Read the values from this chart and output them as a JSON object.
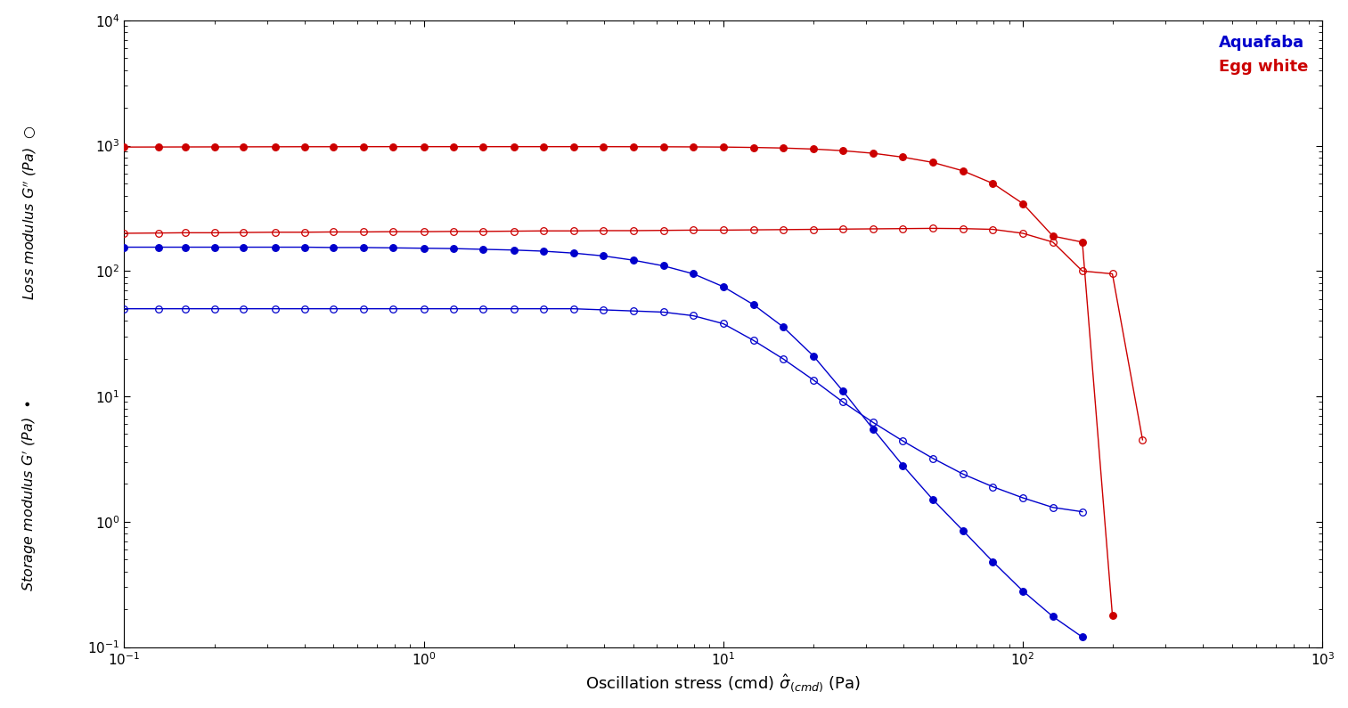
{
  "title": "",
  "xlabel": "Oscillation stress (cmd) $\\hat{\\sigma}_{(cmd)}$ (Pa)",
  "xlim": [
    0.1,
    1000
  ],
  "ylim": [
    0.1,
    10000
  ],
  "legend_labels": [
    "Aquafaba",
    "Egg white"
  ],
  "legend_colors": [
    "#0000cc",
    "#cc0000"
  ],
  "series": {
    "egg_white_Gprime": {
      "x": [
        0.1,
        0.13,
        0.16,
        0.2,
        0.25,
        0.32,
        0.4,
        0.5,
        0.63,
        0.79,
        1.0,
        1.26,
        1.58,
        2.0,
        2.51,
        3.16,
        3.98,
        5.01,
        6.31,
        7.94,
        10.0,
        12.6,
        15.8,
        20.0,
        25.1,
        31.6,
        39.8,
        50.1,
        63.1,
        79.4,
        100.0,
        126.0,
        158.0,
        199.0
      ],
      "y": [
        975,
        976,
        977,
        978,
        979,
        980,
        981,
        981,
        982,
        982,
        982,
        982,
        982,
        982,
        982,
        982,
        982,
        981,
        980,
        978,
        975,
        968,
        958,
        940,
        912,
        870,
        810,
        735,
        630,
        500,
        345,
        190,
        170,
        0.18
      ],
      "color": "#cc0000",
      "filled": true
    },
    "egg_white_Gdprime": {
      "x": [
        0.1,
        0.13,
        0.16,
        0.2,
        0.25,
        0.32,
        0.4,
        0.5,
        0.63,
        0.79,
        1.0,
        1.26,
        1.58,
        2.0,
        2.51,
        3.16,
        3.98,
        5.01,
        6.31,
        7.94,
        10.0,
        12.6,
        15.8,
        20.0,
        25.1,
        31.6,
        39.8,
        50.1,
        63.1,
        79.4,
        100.0,
        126.0,
        158.0,
        199.0,
        251.0
      ],
      "y": [
        200,
        201,
        202,
        202,
        203,
        204,
        204,
        205,
        205,
        206,
        206,
        207,
        207,
        208,
        209,
        209,
        210,
        210,
        211,
        212,
        212,
        213,
        214,
        215,
        216,
        217,
        218,
        219,
        218,
        215,
        200,
        170,
        100,
        95,
        4.5
      ],
      "color": "#cc0000",
      "filled": false
    },
    "aquafaba_Gprime": {
      "x": [
        0.1,
        0.13,
        0.16,
        0.2,
        0.25,
        0.32,
        0.4,
        0.5,
        0.63,
        0.79,
        1.0,
        1.26,
        1.58,
        2.0,
        2.51,
        3.16,
        3.98,
        5.01,
        6.31,
        7.94,
        10.0,
        12.6,
        15.8,
        20.0,
        25.1,
        31.6,
        39.8,
        50.1,
        63.1,
        79.4,
        100.0,
        126.0,
        158.0
      ],
      "y": [
        155,
        155,
        155,
        155,
        155,
        155,
        155,
        154,
        154,
        153,
        152,
        151,
        149,
        147,
        144,
        139,
        132,
        122,
        110,
        95,
        75,
        54,
        36,
        21,
        11,
        5.5,
        2.8,
        1.5,
        0.85,
        0.48,
        0.28,
        0.175,
        0.12
      ],
      "color": "#0000cc",
      "filled": true
    },
    "aquafaba_Gdprime": {
      "x": [
        0.1,
        0.13,
        0.16,
        0.2,
        0.25,
        0.32,
        0.4,
        0.5,
        0.63,
        0.79,
        1.0,
        1.26,
        1.58,
        2.0,
        2.51,
        3.16,
        3.98,
        5.01,
        6.31,
        7.94,
        10.0,
        12.6,
        15.8,
        20.0,
        25.1,
        31.6,
        39.8,
        50.1,
        63.1,
        79.4,
        100.0,
        126.0,
        158.0
      ],
      "y": [
        50,
        50,
        50,
        50,
        50,
        50,
        50,
        50,
        50,
        50,
        50,
        50,
        50,
        50,
        50,
        50,
        49,
        48,
        47,
        44,
        38,
        28,
        20,
        13.5,
        9.0,
        6.2,
        4.4,
        3.2,
        2.4,
        1.9,
        1.55,
        1.3,
        1.2
      ],
      "color": "#0000cc",
      "filled": false
    }
  },
  "background_color": "#ffffff",
  "marker_size": 5.5,
  "line_width": 1.0
}
